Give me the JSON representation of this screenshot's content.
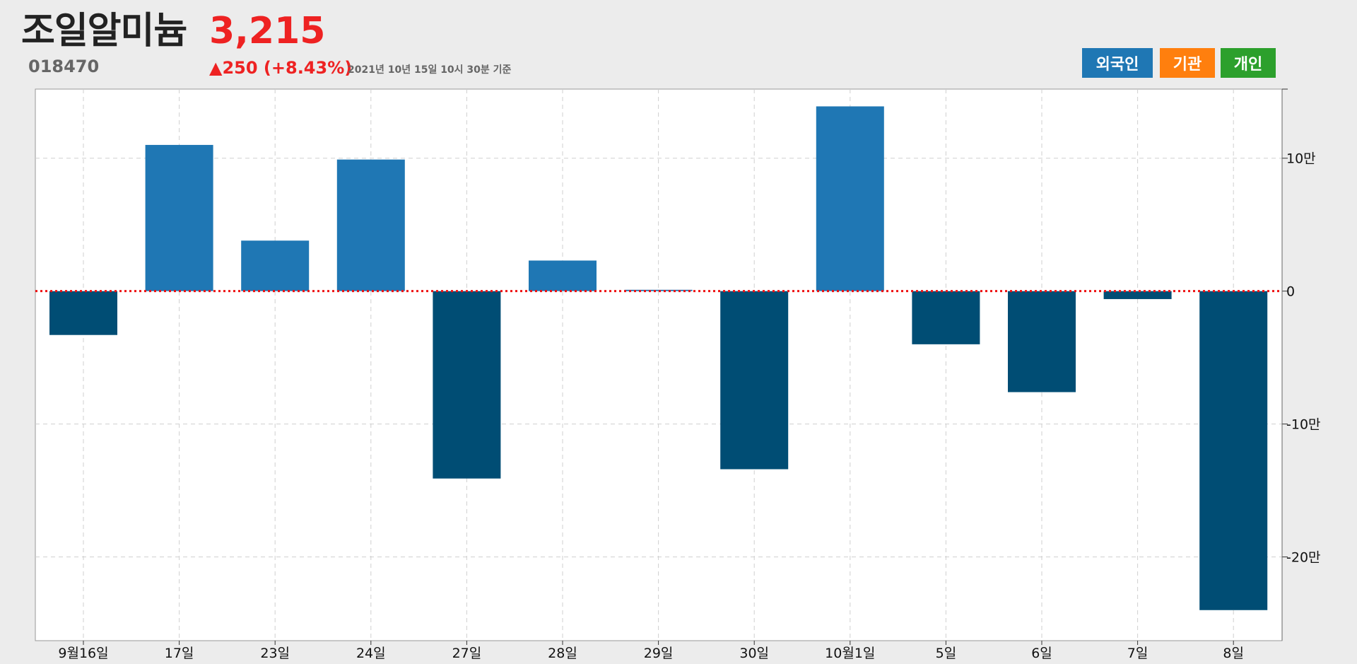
{
  "header": {
    "name": "조일알미늄",
    "code": "018470",
    "price": "3,215",
    "change": "▲250 (+8.43%)",
    "timestamp": "2021년 10년 15일 10시 30분 기준"
  },
  "legend": [
    {
      "label": "외국인",
      "color": "#1f77b4"
    },
    {
      "label": "기관",
      "color": "#ff7f0e"
    },
    {
      "label": "개인",
      "color": "#2ca02c"
    }
  ],
  "colors": {
    "positive": "#1f77b4",
    "negative": "#004d74",
    "zero_line": "#ee1111",
    "grid": "#cfcfcf"
  },
  "chart_data": {
    "type": "bar",
    "categories": [
      "9월16일",
      "17일",
      "23일",
      "24일",
      "27일",
      "28일",
      "29일",
      "30일",
      "10월1일",
      "5일",
      "6일",
      "7일",
      "8일"
    ],
    "series": [
      {
        "values": [
          -33000,
          110000,
          38000,
          99000,
          -141000,
          23000,
          1000,
          -134000,
          139000,
          -40000,
          -76000,
          -6000,
          -240000
        ]
      }
    ],
    "ylim": [
      -263000,
      152000
    ],
    "yticks": [
      100000,
      0,
      -100000,
      -200000
    ],
    "ytick_labels": [
      "10만",
      "0",
      "-10만",
      "-20만"
    ],
    "zero_line": "dotted",
    "grid": true
  }
}
